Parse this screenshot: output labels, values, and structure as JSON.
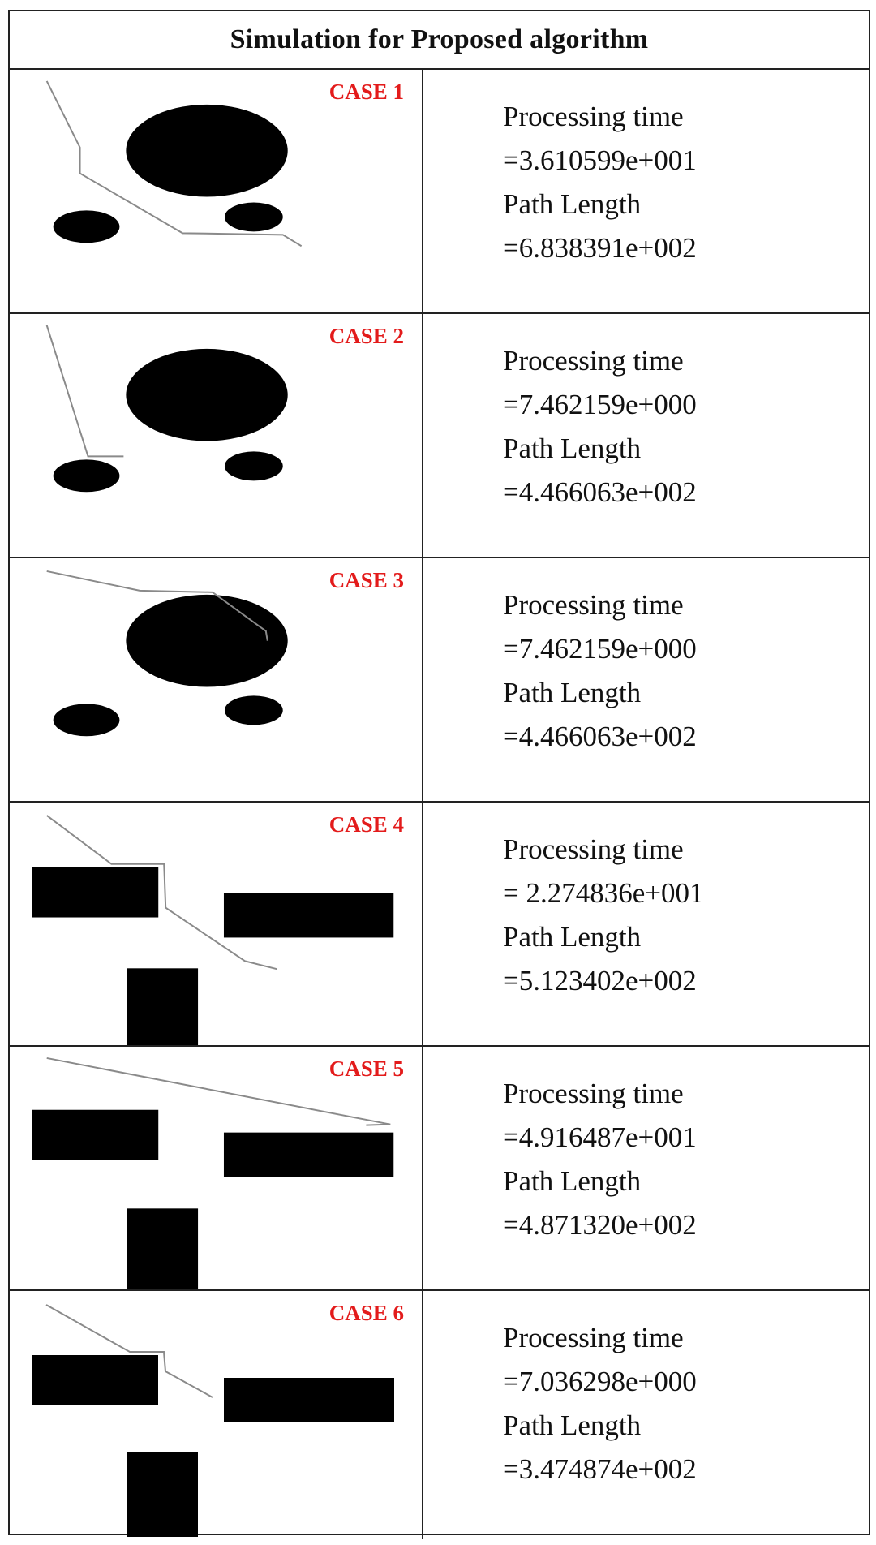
{
  "title": "Simulation for Proposed algorithm",
  "colors": {
    "case_label": "#e31b1b",
    "obstacle": "#000000",
    "path": "#8a8a8a",
    "border": "#222222"
  },
  "cases": [
    {
      "label": "CASE 1",
      "time_label": "Processing time",
      "time_value": "=3.610599e+001",
      "length_label": "Path Length",
      "length_value": "=6.838391e+002"
    },
    {
      "label": "CASE 2",
      "time_label": "Processing time",
      "time_value": "=7.462159e+000",
      "length_label": "Path Length",
      "length_value": "=4.466063e+002"
    },
    {
      "label": "CASE 3",
      "time_label": "Processing time",
      "time_value": "=7.462159e+000",
      "length_label": "Path Length",
      "length_value": "=4.466063e+002"
    },
    {
      "label": "CASE 4",
      "time_label": "Processing time",
      "time_value": "= 2.274836e+001",
      "length_label": "Path Length",
      "length_value": "=5.123402e+002"
    },
    {
      "label": "CASE 5",
      "time_label": "Processing time",
      "time_value": "=4.916487e+001",
      "length_label": "Path Length",
      "length_value": "=4.871320e+002"
    },
    {
      "label": "CASE 6",
      "time_label": "Processing time",
      "time_value": "=7.036298e+000",
      "length_label": "Path Length",
      "length_value": "=3.474874e+002"
    }
  ]
}
